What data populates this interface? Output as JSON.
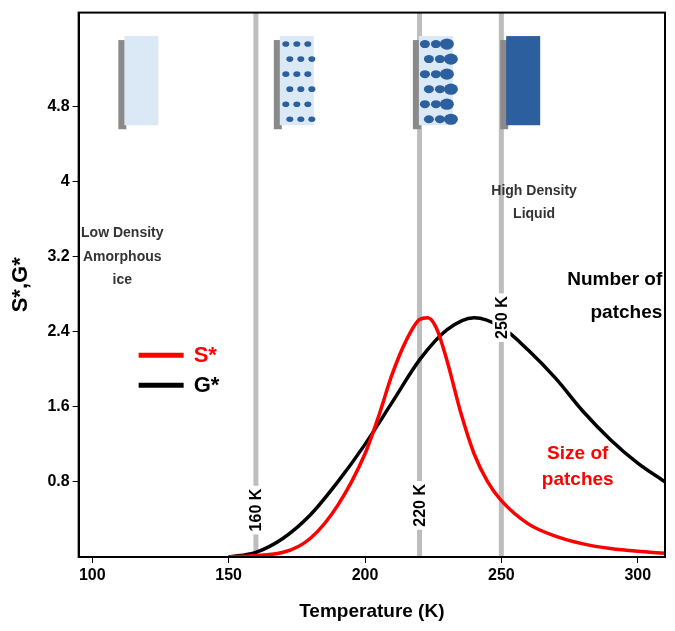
{
  "chart_data": {
    "type": "line",
    "x_label": "Temperature (K)",
    "y_label": "S*,G*",
    "xlim": [
      95,
      310
    ],
    "xticks": [
      100,
      150,
      200,
      250,
      300
    ],
    "ylim": [
      0,
      5.8
    ],
    "yticks": [
      0.8,
      1.6,
      2.4,
      3.2,
      4,
      4.8
    ],
    "grid": false,
    "legend": "left",
    "series": [
      {
        "name": "S*",
        "color": "#ff0000",
        "x": [
          150,
          170,
          180,
          190,
          200,
          205,
          210,
          215,
          220,
          223,
          226,
          230,
          235,
          240,
          245,
          250,
          260,
          270,
          280,
          290,
          300,
          310
        ],
        "values": [
          0,
          0.05,
          0.2,
          0.55,
          1.1,
          1.5,
          1.95,
          2.3,
          2.53,
          2.55,
          2.45,
          2.1,
          1.55,
          1.1,
          0.8,
          0.6,
          0.35,
          0.22,
          0.14,
          0.09,
          0.06,
          0.04
        ]
      },
      {
        "name": "G*",
        "color": "#000000",
        "x": [
          150,
          160,
          170,
          180,
          190,
          200,
          210,
          220,
          230,
          240,
          250,
          260,
          270,
          280,
          290,
          300,
          310
        ],
        "values": [
          0,
          0.05,
          0.2,
          0.45,
          0.8,
          1.2,
          1.65,
          2.1,
          2.42,
          2.55,
          2.45,
          2.2,
          1.9,
          1.55,
          1.25,
          1.0,
          0.8
        ]
      }
    ],
    "vlines": [
      {
        "value": 160,
        "label": "160 K"
      },
      {
        "value": 220,
        "label": "220 K"
      },
      {
        "value": 250,
        "label": "250 K"
      }
    ],
    "annotations": [
      {
        "text": [
          "Low Density",
          "Amorphous",
          "ice"
        ],
        "color": "#333333"
      },
      {
        "text": [
          "High Density",
          "Liquid"
        ],
        "color": "#333333"
      },
      {
        "text": [
          "Number of",
          "patches"
        ],
        "color": "#000000"
      },
      {
        "text": [
          "Size of",
          "patches"
        ],
        "color": "#ff0000"
      }
    ]
  }
}
